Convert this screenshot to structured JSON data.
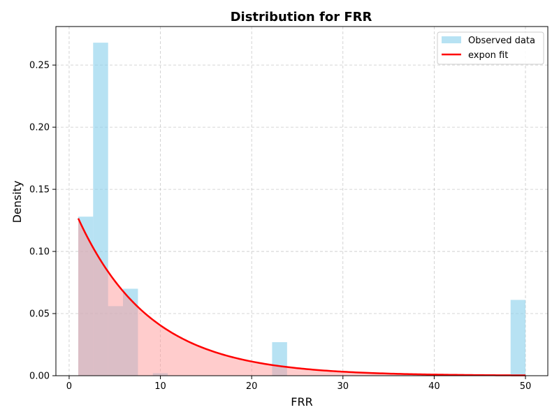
{
  "chart_data": {
    "type": "bar",
    "title": "Distribution for FRR",
    "xlabel": "FRR",
    "ylabel": "Density",
    "xlim": [
      -1.45,
      52.45
    ],
    "ylim": [
      0,
      0.281
    ],
    "x_ticks": [
      0,
      10,
      20,
      30,
      40,
      50
    ],
    "y_ticks": [
      0.0,
      0.05,
      0.1,
      0.15,
      0.2,
      0.25
    ],
    "y_tick_labels": [
      "0.00",
      "0.05",
      "0.10",
      "0.15",
      "0.20",
      "0.25"
    ],
    "grid": true,
    "legend_position": "top-right",
    "series": [
      {
        "name": "Observed data",
        "kind": "histogram",
        "color": "#87ceeb",
        "bins": [
          {
            "x0": 1.0,
            "x1": 2.63,
            "value": 0.128
          },
          {
            "x0": 2.63,
            "x1": 4.27,
            "value": 0.268
          },
          {
            "x0": 4.27,
            "x1": 5.9,
            "value": 0.056
          },
          {
            "x0": 5.9,
            "x1": 7.54,
            "value": 0.07
          },
          {
            "x0": 9.17,
            "x1": 10.81,
            "value": 0.002
          },
          {
            "x0": 22.24,
            "x1": 23.88,
            "value": 0.027
          },
          {
            "x0": 48.37,
            "x1": 50.0,
            "value": 0.061
          }
        ]
      },
      {
        "name": "expon fit",
        "kind": "line",
        "color": "#ff0000",
        "fill_color": "#ff9999",
        "loc": 1.0,
        "scale": 7.9,
        "x_range": [
          1.0,
          50.0
        ]
      }
    ]
  }
}
